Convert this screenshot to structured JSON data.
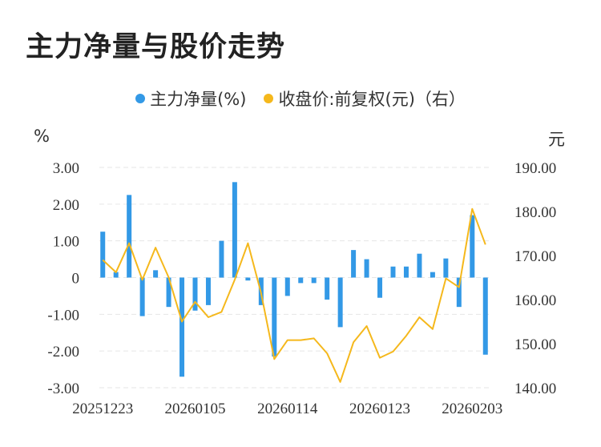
{
  "title": "主力净量与股价走势",
  "legend": {
    "bar_label": "主力净量(%)",
    "line_label": "收盘价:前复权(元)（右）"
  },
  "units": {
    "left": "%",
    "right": "元"
  },
  "colors": {
    "bar": "#3399e6",
    "line": "#f5b81c",
    "grid": "#e6e6e6"
  },
  "chart_data": {
    "type": "bar",
    "xlabel": "",
    "ylabel": "%",
    "ylim": [
      -3,
      3
    ],
    "y2lim": [
      140,
      190
    ],
    "y_ticks": [
      "3.00",
      "2.00",
      "1.00",
      "0",
      "-1.00",
      "-2.00",
      "-3.00"
    ],
    "y2_ticks": [
      "190.00",
      "180.00",
      "170.00",
      "160.00",
      "150.00",
      "140.00"
    ],
    "x_tick_labels": [
      "20251223",
      "20260105",
      "20260114",
      "20260123",
      "20260203"
    ],
    "series": [
      {
        "name": "主力净量(%)",
        "type": "bar",
        "axis": "left",
        "values": [
          1.25,
          0.15,
          2.25,
          -1.05,
          0.2,
          -0.8,
          -2.7,
          -0.9,
          -0.75,
          1.0,
          2.6,
          -0.08,
          -0.75,
          -2.15,
          -0.5,
          -0.15,
          -0.15,
          -0.6,
          -1.35,
          0.75,
          0.5,
          -0.55,
          0.3,
          0.3,
          0.65,
          0.15,
          0.52,
          -0.8,
          1.7,
          -2.1
        ]
      },
      {
        "name": "收盘价:前复权(元)（右）",
        "type": "line",
        "axis": "right",
        "values": [
          169,
          166.2,
          172.8,
          164.5,
          171.8,
          165,
          155,
          159.5,
          156,
          157.2,
          164.5,
          172.8,
          161.5,
          146.5,
          150.8,
          150.8,
          151.2,
          147.8,
          141.3,
          150.3,
          154,
          146.8,
          148.2,
          151.8,
          156,
          153.3,
          164.8,
          162.8,
          180.6,
          172.5
        ]
      }
    ]
  }
}
